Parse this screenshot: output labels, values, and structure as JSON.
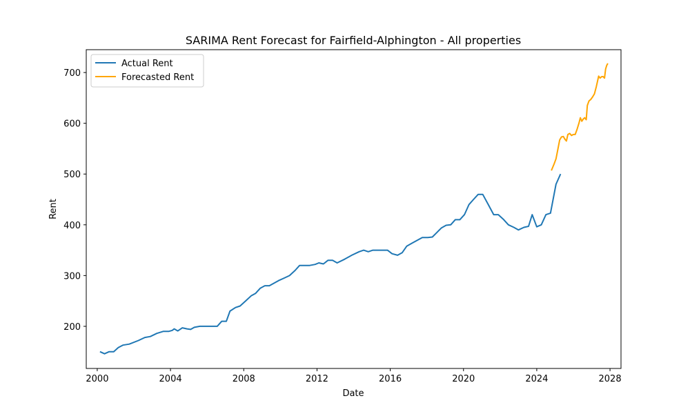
{
  "chart_data": {
    "type": "line",
    "title": "SARIMA Rent Forecast for Fairfield-Alphington - All properties",
    "xlabel": "Date",
    "ylabel": "Rent",
    "xlim": [
      1999.4,
      2028.6
    ],
    "ylim": [
      117,
      745
    ],
    "x_ticks": [
      2000,
      2004,
      2008,
      2012,
      2016,
      2020,
      2024,
      2028
    ],
    "y_ticks": [
      200,
      300,
      400,
      500,
      600,
      700
    ],
    "grid": false,
    "legend_position": "upper left",
    "series": [
      {
        "name": "Actual Rent",
        "color": "#1f77b4",
        "points": [
          [
            2000.15,
            150
          ],
          [
            2000.4,
            146
          ],
          [
            2000.65,
            150
          ],
          [
            2000.9,
            150
          ],
          [
            2001.15,
            158
          ],
          [
            2001.4,
            163
          ],
          [
            2001.75,
            165
          ],
          [
            2002.25,
            172
          ],
          [
            2002.6,
            178
          ],
          [
            2002.9,
            180
          ],
          [
            2003.25,
            186
          ],
          [
            2003.6,
            190
          ],
          [
            2003.9,
            190
          ],
          [
            2004.1,
            192
          ],
          [
            2004.2,
            195
          ],
          [
            2004.4,
            191
          ],
          [
            2004.65,
            197
          ],
          [
            2004.9,
            195
          ],
          [
            2005.1,
            194
          ],
          [
            2005.3,
            198
          ],
          [
            2005.6,
            200
          ],
          [
            2006.3,
            200
          ],
          [
            2006.55,
            200
          ],
          [
            2006.8,
            210
          ],
          [
            2007.05,
            210
          ],
          [
            2007.25,
            230
          ],
          [
            2007.55,
            237
          ],
          [
            2007.8,
            240
          ],
          [
            2008.1,
            250
          ],
          [
            2008.4,
            260
          ],
          [
            2008.65,
            265
          ],
          [
            2008.9,
            275
          ],
          [
            2009.15,
            280
          ],
          [
            2009.4,
            280
          ],
          [
            2009.9,
            290
          ],
          [
            2010.2,
            295
          ],
          [
            2010.5,
            300
          ],
          [
            2010.8,
            310
          ],
          [
            2011.05,
            320
          ],
          [
            2011.3,
            320
          ],
          [
            2011.6,
            320
          ],
          [
            2011.9,
            322
          ],
          [
            2012.1,
            325
          ],
          [
            2012.35,
            323
          ],
          [
            2012.6,
            330
          ],
          [
            2012.85,
            330
          ],
          [
            2013.1,
            325
          ],
          [
            2013.5,
            332
          ],
          [
            2013.9,
            340
          ],
          [
            2014.3,
            347
          ],
          [
            2014.55,
            350
          ],
          [
            2014.8,
            347
          ],
          [
            2015.05,
            350
          ],
          [
            2015.3,
            350
          ],
          [
            2015.6,
            350
          ],
          [
            2015.85,
            350
          ],
          [
            2016.1,
            343
          ],
          [
            2016.4,
            340
          ],
          [
            2016.65,
            345
          ],
          [
            2016.9,
            358
          ],
          [
            2017.2,
            364
          ],
          [
            2017.5,
            370
          ],
          [
            2017.75,
            375
          ],
          [
            2018.05,
            375
          ],
          [
            2018.3,
            376
          ],
          [
            2018.55,
            385
          ],
          [
            2018.8,
            394
          ],
          [
            2019.05,
            399
          ],
          [
            2019.3,
            400
          ],
          [
            2019.55,
            410
          ],
          [
            2019.8,
            410
          ],
          [
            2020.05,
            420
          ],
          [
            2020.3,
            440
          ],
          [
            2020.55,
            450
          ],
          [
            2020.8,
            460
          ],
          [
            2021.05,
            460
          ],
          [
            2021.35,
            440
          ],
          [
            2021.65,
            420
          ],
          [
            2021.9,
            420
          ],
          [
            2022.2,
            410
          ],
          [
            2022.45,
            400
          ],
          [
            2022.75,
            395
          ],
          [
            2023.0,
            390
          ],
          [
            2023.3,
            395
          ],
          [
            2023.55,
            397
          ],
          [
            2023.75,
            420
          ],
          [
            2024.0,
            396
          ],
          [
            2024.25,
            400
          ],
          [
            2024.5,
            420
          ],
          [
            2024.75,
            423
          ],
          [
            2025.05,
            480
          ],
          [
            2025.3,
            500
          ]
        ]
      },
      {
        "name": "Forecasted Rent",
        "color": "#ffa500",
        "points": [
          [
            2024.8,
            507
          ],
          [
            2024.95,
            520
          ],
          [
            2025.05,
            530
          ],
          [
            2025.15,
            548
          ],
          [
            2025.25,
            567
          ],
          [
            2025.35,
            573
          ],
          [
            2025.45,
            574
          ],
          [
            2025.55,
            568
          ],
          [
            2025.62,
            565
          ],
          [
            2025.7,
            578
          ],
          [
            2025.8,
            580
          ],
          [
            2025.9,
            576
          ],
          [
            2026.0,
            578
          ],
          [
            2026.1,
            578
          ],
          [
            2026.2,
            588
          ],
          [
            2026.3,
            600
          ],
          [
            2026.38,
            611
          ],
          [
            2026.46,
            604
          ],
          [
            2026.55,
            609
          ],
          [
            2026.62,
            611
          ],
          [
            2026.7,
            607
          ],
          [
            2026.76,
            635
          ],
          [
            2026.85,
            644
          ],
          [
            2026.95,
            647
          ],
          [
            2027.05,
            652
          ],
          [
            2027.15,
            658
          ],
          [
            2027.25,
            672
          ],
          [
            2027.32,
            683
          ],
          [
            2027.38,
            693
          ],
          [
            2027.46,
            689
          ],
          [
            2027.55,
            692
          ],
          [
            2027.62,
            692
          ],
          [
            2027.7,
            689
          ],
          [
            2027.76,
            707
          ],
          [
            2027.82,
            714
          ],
          [
            2027.88,
            718
          ]
        ]
      }
    ]
  }
}
